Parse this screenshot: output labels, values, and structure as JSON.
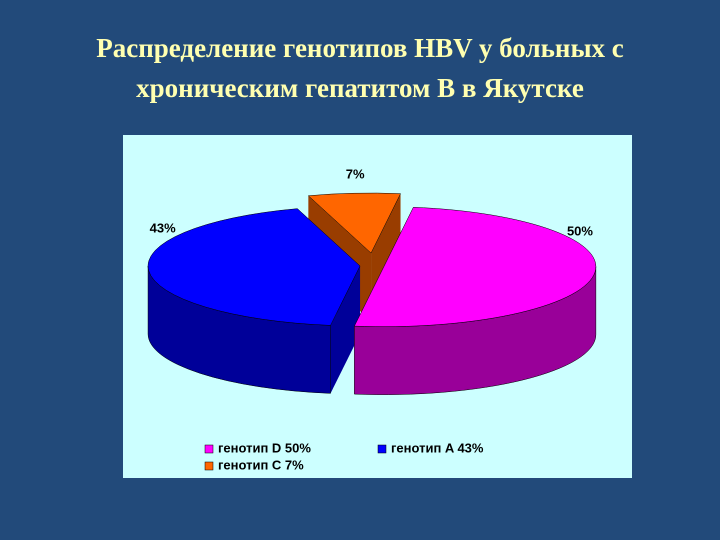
{
  "chart_data": {
    "type": "pie",
    "title": "Распределение генотипов HBV у больных с хроническим гепатитом В в Якутске",
    "categories": [
      "генотип D 50%",
      "генотип A 43%",
      "генотип C 7%"
    ],
    "values": [
      50,
      43,
      7
    ],
    "value_labels": [
      "50%",
      "43%",
      "7%"
    ],
    "colors": [
      "#ff00ff",
      "#0000ff",
      "#ff6600"
    ]
  }
}
